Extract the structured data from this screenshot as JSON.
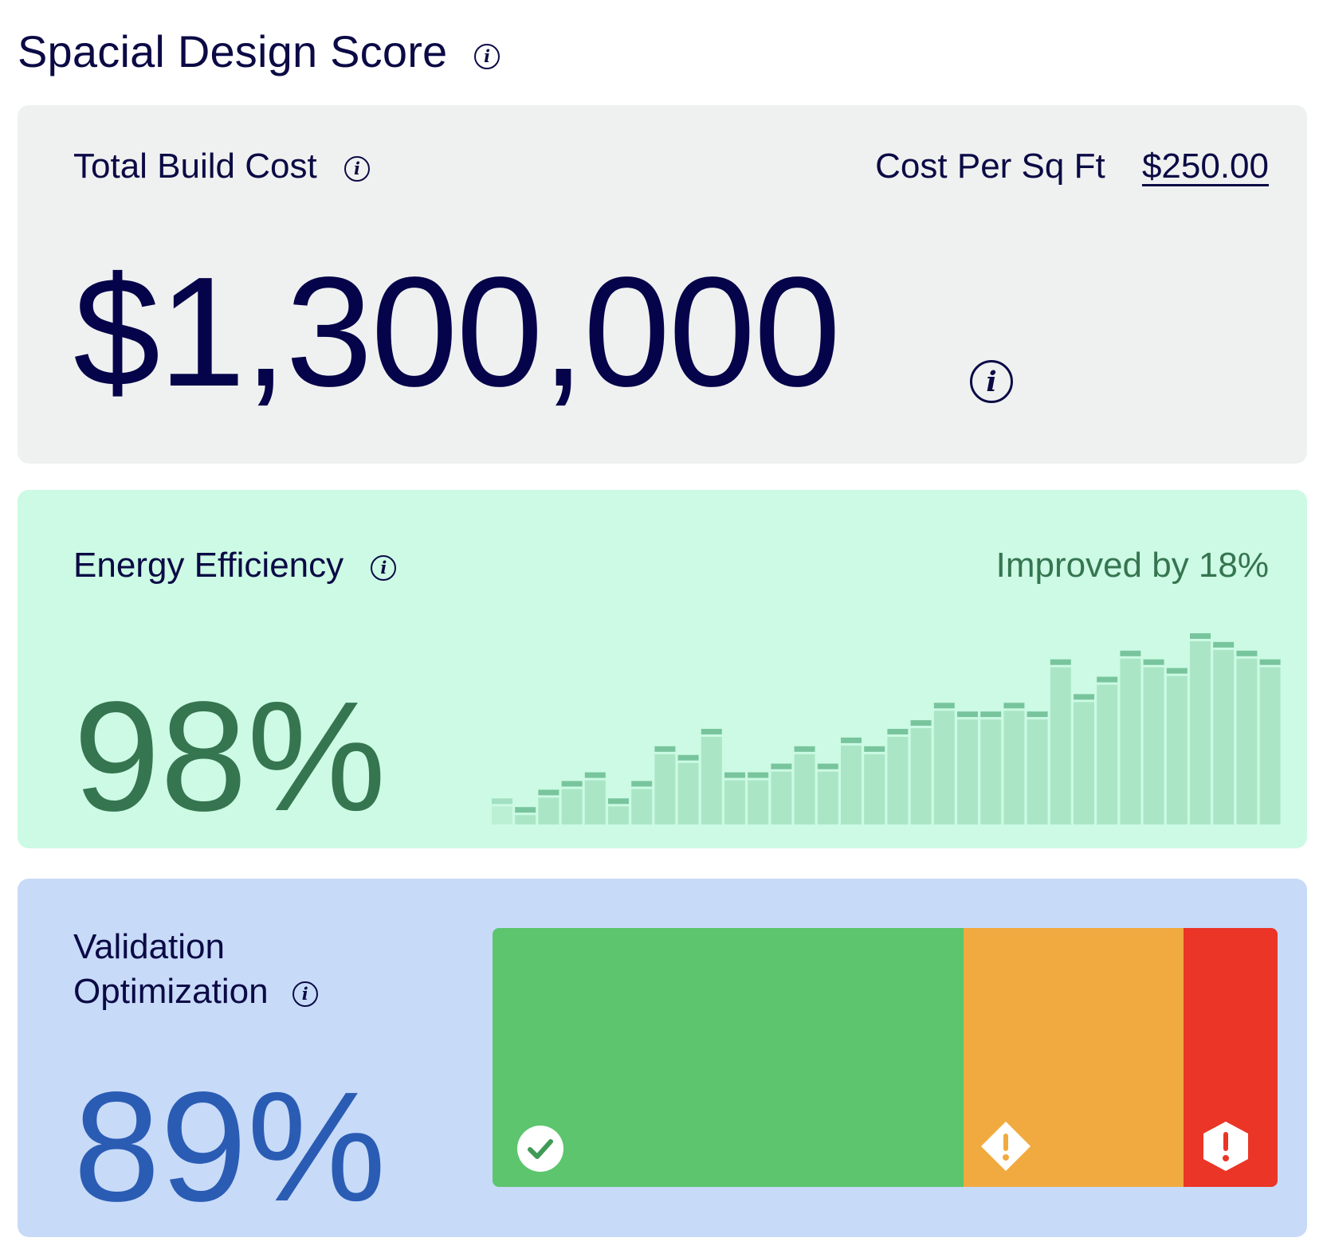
{
  "header": {
    "title": "Spacial Design Score",
    "info_icon": "info-icon"
  },
  "cost_card": {
    "label": "Total Build Cost",
    "cost_per_label": "Cost Per Sq Ft",
    "cost_per_value": "$250.00",
    "total": "$1,300,000",
    "background": "#eff1f0",
    "text_color": "#0b0a45"
  },
  "energy_card": {
    "label": "Energy Efficiency",
    "improvement": "Improved by 18%",
    "value": "98%",
    "background": "#ccfae4",
    "accent": "#357550",
    "bar_color": "#aae6c6",
    "cap_color": "#78c59d"
  },
  "chart_data": {
    "type": "bar",
    "values": [
      3,
      2,
      4,
      5,
      6,
      3,
      5,
      9,
      8,
      11,
      6,
      6,
      7,
      9,
      7,
      10,
      9,
      11,
      12,
      14,
      13,
      13,
      14,
      13,
      19,
      15,
      17,
      20,
      19,
      18,
      22,
      21,
      20,
      19
    ]
  },
  "validation_card": {
    "label_line1": "Validation",
    "label_line2": "Optimization",
    "value": "89%",
    "background": "#c7daf8",
    "accent": "#2a5cb4",
    "segments": [
      {
        "name": "passed",
        "fraction": 0.6,
        "color": "#5cc56d",
        "icon": "check-circle-icon"
      },
      {
        "name": "warnings",
        "fraction": 0.28,
        "color": "#f1aa3f",
        "icon": "warning-diamond-icon"
      },
      {
        "name": "errors",
        "fraction": 0.12,
        "color": "#ea3527",
        "icon": "error-hexagon-icon"
      }
    ]
  }
}
